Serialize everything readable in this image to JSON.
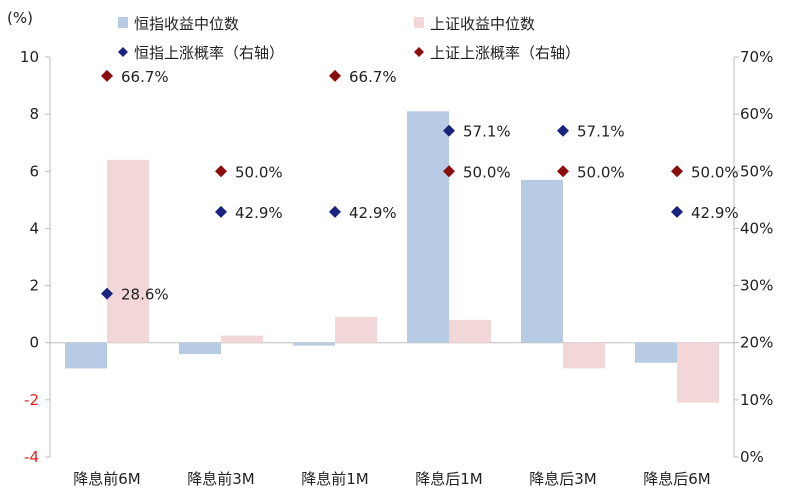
{
  "chart_data": {
    "type": "bar",
    "categories": [
      "降息前6M",
      "降息前3M",
      "降息前1M",
      "降息后1M",
      "降息后3M",
      "降息后6M"
    ],
    "left_axis": {
      "unit": "(%)",
      "min": -4,
      "max": 10,
      "step": 2,
      "tick_labels": [
        "-4",
        "-2",
        "0",
        "2",
        "4",
        "6",
        "8",
        "10"
      ]
    },
    "right_axis": {
      "min": 0,
      "max": 70,
      "step": 10,
      "tick_labels": [
        "0%",
        "10%",
        "20%",
        "30%",
        "40%",
        "50%",
        "60%",
        "70%"
      ]
    },
    "series": [
      {
        "name": "恒指收益中位数",
        "kind": "bar",
        "axis": "left",
        "color": "#b7cce4",
        "values": [
          -0.9,
          -0.4,
          -0.1,
          8.1,
          5.7,
          -0.7
        ]
      },
      {
        "name": "上证收益中位数",
        "kind": "bar",
        "axis": "left",
        "color": "#f3d7d8",
        "values": [
          6.4,
          0.25,
          0.9,
          0.8,
          -0.9,
          -2.1
        ]
      },
      {
        "name": "恒指上涨概率（右轴）",
        "kind": "scatter",
        "axis": "right",
        "color": "#1a237e",
        "values": [
          28.6,
          42.9,
          42.9,
          57.1,
          57.1,
          42.9
        ],
        "labels": [
          "28.6%",
          "42.9%",
          "42.9%",
          "57.1%",
          "57.1%",
          "42.9%"
        ]
      },
      {
        "name": "上证上涨概率（右轴）",
        "kind": "scatter",
        "axis": "right",
        "color": "#8b0d0d",
        "values": [
          66.7,
          50.0,
          66.7,
          50.0,
          50.0,
          50.0
        ],
        "labels": [
          "66.7%",
          "50.0%",
          "66.7%",
          "50.0%",
          "50.0%",
          "50.0%"
        ]
      }
    ],
    "legend_position": "top",
    "negative_tick_color": "#e0201a"
  }
}
